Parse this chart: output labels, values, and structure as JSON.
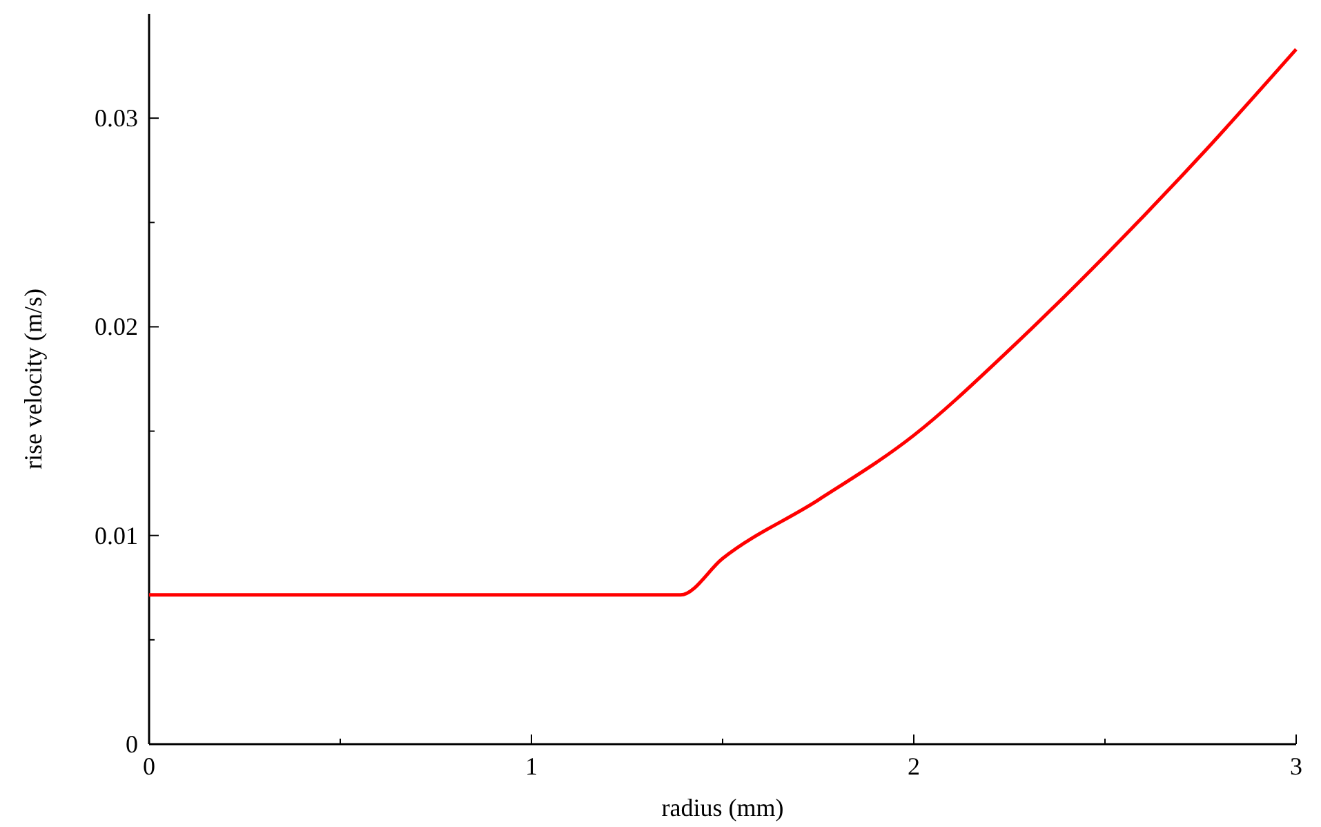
{
  "chart_data": {
    "type": "line",
    "xlabel": "radius (mm)",
    "ylabel": "rise velocity (m/s)",
    "xlim": [
      0,
      3
    ],
    "ylim": [
      0,
      0.035
    ],
    "xticks": [
      0,
      {
        "value": 0.5,
        "label": null
      },
      1,
      {
        "value": 1.5,
        "label": null
      },
      2,
      {
        "value": 2.5,
        "label": null
      },
      3
    ],
    "yticks": [
      0,
      {
        "value": 0.005,
        "label": null
      },
      0.01,
      {
        "value": 0.015,
        "label": null
      },
      0.02,
      {
        "value": 0.025,
        "label": null
      },
      0.03
    ],
    "grid": false,
    "marker": "none",
    "line_style": "solid",
    "series": [
      {
        "color": "#ff0000",
        "x": [
          0,
          1.39,
          1.5,
          1.75,
          2,
          2.25,
          2.5,
          2.75,
          3
        ],
        "values": [
          0.00715,
          0.00715,
          0.0089,
          0.0117,
          0.0148,
          0.0189,
          0.0234,
          0.0282,
          0.0333
        ]
      }
    ]
  }
}
